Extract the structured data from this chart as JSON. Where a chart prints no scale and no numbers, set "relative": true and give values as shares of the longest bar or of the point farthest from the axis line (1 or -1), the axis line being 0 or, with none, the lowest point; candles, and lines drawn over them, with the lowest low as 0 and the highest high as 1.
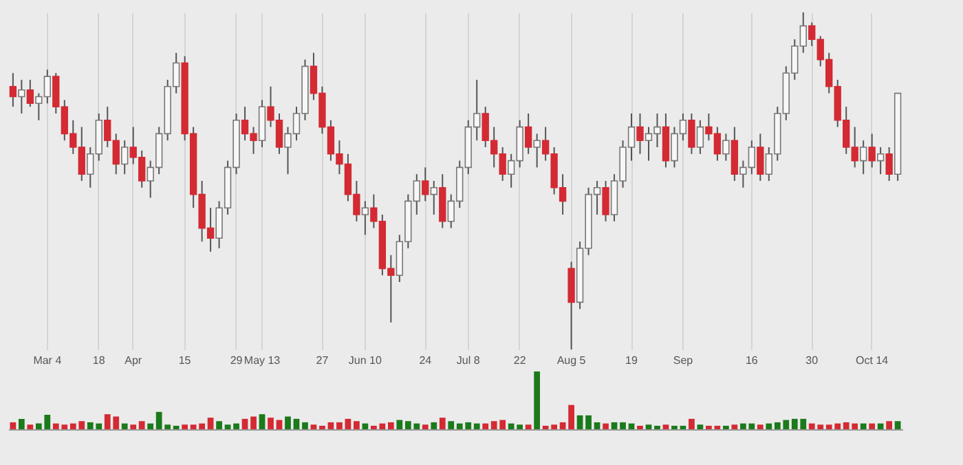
{
  "chart_data": [
    {
      "type": "candlestick",
      "relative": true,
      "grid": "x",
      "categories": [
        null,
        null,
        null,
        null,
        "Mar 4",
        null,
        null,
        null,
        null,
        null,
        "18",
        null,
        null,
        null,
        "Apr",
        null,
        null,
        null,
        null,
        null,
        "15",
        null,
        null,
        null,
        null,
        null,
        "29",
        null,
        null,
        "May 13",
        null,
        null,
        null,
        null,
        null,
        null,
        "27",
        null,
        null,
        null,
        null,
        "Jun 10",
        null,
        null,
        null,
        null,
        null,
        null,
        "24",
        null,
        null,
        null,
        null,
        "Jul 8",
        null,
        null,
        null,
        null,
        null,
        "22",
        null,
        null,
        null,
        null,
        null,
        "Aug 5",
        null,
        null,
        null,
        null,
        null,
        null,
        "19",
        null,
        null,
        null,
        null,
        null,
        "Sep",
        null,
        null,
        null,
        null,
        null,
        null,
        null,
        "16",
        null,
        null,
        null,
        null,
        null,
        null,
        "30",
        null,
        null,
        null,
        null,
        null,
        null,
        "Oct 14",
        null,
        null,
        null
      ],
      "ohlc": [
        [
          0.78,
          0.82,
          0.72,
          0.75
        ],
        [
          0.75,
          0.8,
          0.7,
          0.77
        ],
        [
          0.77,
          0.8,
          0.72,
          0.73
        ],
        [
          0.73,
          0.76,
          0.68,
          0.75
        ],
        [
          0.75,
          0.83,
          0.73,
          0.81
        ],
        [
          0.81,
          0.82,
          0.7,
          0.72
        ],
        [
          0.72,
          0.74,
          0.62,
          0.64
        ],
        [
          0.64,
          0.68,
          0.58,
          0.6
        ],
        [
          0.6,
          0.66,
          0.5,
          0.52
        ],
        [
          0.52,
          0.6,
          0.48,
          0.58
        ],
        [
          0.58,
          0.7,
          0.56,
          0.68
        ],
        [
          0.68,
          0.72,
          0.6,
          0.62
        ],
        [
          0.62,
          0.64,
          0.52,
          0.55
        ],
        [
          0.55,
          0.62,
          0.52,
          0.6
        ],
        [
          0.6,
          0.66,
          0.55,
          0.57
        ],
        [
          0.57,
          0.59,
          0.48,
          0.5
        ],
        [
          0.5,
          0.56,
          0.45,
          0.54
        ],
        [
          0.54,
          0.66,
          0.52,
          0.64
        ],
        [
          0.64,
          0.8,
          0.62,
          0.78
        ],
        [
          0.78,
          0.88,
          0.76,
          0.85
        ],
        [
          0.85,
          0.87,
          0.62,
          0.64
        ],
        [
          0.64,
          0.66,
          0.42,
          0.46
        ],
        [
          0.46,
          0.5,
          0.32,
          0.36
        ],
        [
          0.36,
          0.42,
          0.29,
          0.33
        ],
        [
          0.33,
          0.44,
          0.3,
          0.42
        ],
        [
          0.42,
          0.56,
          0.4,
          0.54
        ],
        [
          0.54,
          0.7,
          0.52,
          0.68
        ],
        [
          0.68,
          0.72,
          0.62,
          0.64
        ],
        [
          0.64,
          0.66,
          0.58,
          0.62
        ],
        [
          0.62,
          0.74,
          0.6,
          0.72
        ],
        [
          0.72,
          0.78,
          0.66,
          0.68
        ],
        [
          0.68,
          0.7,
          0.58,
          0.6
        ],
        [
          0.6,
          0.66,
          0.52,
          0.64
        ],
        [
          0.64,
          0.72,
          0.62,
          0.7
        ],
        [
          0.7,
          0.86,
          0.68,
          0.84
        ],
        [
          0.84,
          0.88,
          0.74,
          0.76
        ],
        [
          0.76,
          0.78,
          0.64,
          0.66
        ],
        [
          0.66,
          0.68,
          0.56,
          0.58
        ],
        [
          0.58,
          0.62,
          0.52,
          0.55
        ],
        [
          0.55,
          0.58,
          0.44,
          0.46
        ],
        [
          0.46,
          0.5,
          0.38,
          0.4
        ],
        [
          0.4,
          0.44,
          0.34,
          0.42
        ],
        [
          0.42,
          0.46,
          0.36,
          0.38
        ],
        [
          0.38,
          0.4,
          0.22,
          0.24
        ],
        [
          0.24,
          0.28,
          0.08,
          0.22
        ],
        [
          0.22,
          0.34,
          0.2,
          0.32
        ],
        [
          0.32,
          0.46,
          0.3,
          0.44
        ],
        [
          0.44,
          0.52,
          0.4,
          0.5
        ],
        [
          0.5,
          0.54,
          0.44,
          0.46
        ],
        [
          0.46,
          0.5,
          0.4,
          0.48
        ],
        [
          0.48,
          0.52,
          0.36,
          0.38
        ],
        [
          0.38,
          0.46,
          0.36,
          0.44
        ],
        [
          0.44,
          0.56,
          0.42,
          0.54
        ],
        [
          0.54,
          0.68,
          0.52,
          0.66
        ],
        [
          0.66,
          0.8,
          0.62,
          0.7
        ],
        [
          0.7,
          0.72,
          0.6,
          0.62
        ],
        [
          0.62,
          0.66,
          0.54,
          0.58
        ],
        [
          0.58,
          0.6,
          0.5,
          0.52
        ],
        [
          0.52,
          0.58,
          0.48,
          0.56
        ],
        [
          0.56,
          0.68,
          0.54,
          0.66
        ],
        [
          0.66,
          0.7,
          0.58,
          0.6
        ],
        [
          0.6,
          0.64,
          0.54,
          0.62
        ],
        [
          0.62,
          0.66,
          0.56,
          0.58
        ],
        [
          0.58,
          0.6,
          0.46,
          0.48
        ],
        [
          0.48,
          0.52,
          0.4,
          0.44
        ],
        [
          0.24,
          0.26,
          0.0,
          0.14
        ],
        [
          0.14,
          0.32,
          0.12,
          0.3
        ],
        [
          0.3,
          0.48,
          0.28,
          0.46
        ],
        [
          0.46,
          0.5,
          0.4,
          0.48
        ],
        [
          0.48,
          0.5,
          0.38,
          0.4
        ],
        [
          0.4,
          0.52,
          0.38,
          0.5
        ],
        [
          0.5,
          0.62,
          0.48,
          0.6
        ],
        [
          0.6,
          0.7,
          0.56,
          0.66
        ],
        [
          0.66,
          0.7,
          0.58,
          0.62
        ],
        [
          0.62,
          0.66,
          0.56,
          0.64
        ],
        [
          0.64,
          0.7,
          0.6,
          0.66
        ],
        [
          0.66,
          0.7,
          0.54,
          0.56
        ],
        [
          0.56,
          0.66,
          0.54,
          0.64
        ],
        [
          0.64,
          0.7,
          0.62,
          0.68
        ],
        [
          0.68,
          0.7,
          0.58,
          0.6
        ],
        [
          0.6,
          0.68,
          0.58,
          0.66
        ],
        [
          0.66,
          0.7,
          0.62,
          0.64
        ],
        [
          0.64,
          0.66,
          0.56,
          0.58
        ],
        [
          0.58,
          0.64,
          0.56,
          0.62
        ],
        [
          0.62,
          0.66,
          0.5,
          0.52
        ],
        [
          0.52,
          0.56,
          0.48,
          0.54
        ],
        [
          0.54,
          0.62,
          0.52,
          0.6
        ],
        [
          0.6,
          0.64,
          0.5,
          0.52
        ],
        [
          0.52,
          0.6,
          0.5,
          0.58
        ],
        [
          0.58,
          0.72,
          0.56,
          0.7
        ],
        [
          0.7,
          0.84,
          0.68,
          0.82
        ],
        [
          0.82,
          0.92,
          0.8,
          0.9
        ],
        [
          0.9,
          1.0,
          0.88,
          0.96
        ],
        [
          0.96,
          0.97,
          0.9,
          0.92
        ],
        [
          0.92,
          0.93,
          0.84,
          0.86
        ],
        [
          0.86,
          0.88,
          0.76,
          0.78
        ],
        [
          0.78,
          0.8,
          0.66,
          0.68
        ],
        [
          0.68,
          0.72,
          0.58,
          0.6
        ],
        [
          0.6,
          0.66,
          0.54,
          0.56
        ],
        [
          0.56,
          0.62,
          0.52,
          0.6
        ],
        [
          0.6,
          0.64,
          0.54,
          0.56
        ],
        [
          0.56,
          0.6,
          0.52,
          0.58
        ],
        [
          0.58,
          0.6,
          0.5,
          0.52
        ],
        [
          0.52,
          0.76,
          0.5,
          0.76
        ]
      ]
    },
    {
      "type": "bar",
      "relative": true,
      "categories": [
        null,
        null,
        null,
        null,
        null,
        null,
        null,
        null,
        null,
        null,
        null,
        null,
        null,
        null,
        null,
        null,
        null,
        null,
        null,
        null,
        null,
        null,
        null,
        null,
        null,
        null,
        null,
        null,
        null,
        null,
        null,
        null,
        null,
        null,
        null,
        null,
        null,
        null,
        null,
        null,
        null,
        null,
        null,
        null,
        null,
        null,
        null,
        null,
        null,
        null,
        null,
        null,
        null,
        null,
        null,
        null,
        null,
        null,
        null,
        null,
        null,
        null,
        null,
        null,
        null,
        null,
        null,
        null,
        null,
        null,
        null,
        null,
        null,
        null,
        null,
        null,
        null,
        null,
        null,
        null,
        null,
        null,
        null,
        null,
        null,
        null,
        null,
        null,
        null,
        null,
        null,
        null,
        null,
        null,
        null,
        null,
        null,
        null,
        null,
        null,
        null,
        null,
        null,
        null
      ],
      "values": [
        0.12,
        0.18,
        0.08,
        0.1,
        0.25,
        0.1,
        0.08,
        0.1,
        0.14,
        0.12,
        0.1,
        0.26,
        0.22,
        0.1,
        0.08,
        0.14,
        0.1,
        0.3,
        0.08,
        0.06,
        0.08,
        0.08,
        0.1,
        0.2,
        0.14,
        0.08,
        0.1,
        0.18,
        0.22,
        0.26,
        0.2,
        0.16,
        0.22,
        0.18,
        0.12,
        0.08,
        0.06,
        0.12,
        0.12,
        0.18,
        0.14,
        0.1,
        0.06,
        0.1,
        0.12,
        0.16,
        0.14,
        0.1,
        0.08,
        0.12,
        0.2,
        0.14,
        0.1,
        0.12,
        0.1,
        0.1,
        0.14,
        0.16,
        0.1,
        0.08,
        0.08,
        1.0,
        0.06,
        0.08,
        0.12,
        0.42,
        0.24,
        0.24,
        0.12,
        0.1,
        0.12,
        0.12,
        0.1,
        0.06,
        0.08,
        0.06,
        0.08,
        0.06,
        0.06,
        0.18,
        0.08,
        0.06,
        0.06,
        0.06,
        0.08,
        0.1,
        0.1,
        0.08,
        0.1,
        0.12,
        0.16,
        0.18,
        0.18,
        0.1,
        0.08,
        0.08,
        0.1,
        0.12,
        0.1,
        0.1,
        0.1,
        0.1,
        0.14,
        0.14
      ],
      "colors": [
        "#d42a33",
        "#1b7a1b",
        "#d42a33",
        "#1b7a1b",
        "#1b7a1b",
        "#d42a33",
        "#d42a33",
        "#d42a33",
        "#d42a33",
        "#1b7a1b",
        "#1b7a1b",
        "#d42a33",
        "#d42a33",
        "#1b7a1b",
        "#d42a33",
        "#d42a33",
        "#1b7a1b",
        "#1b7a1b",
        "#1b7a1b",
        "#1b7a1b",
        "#d42a33",
        "#d42a33",
        "#d42a33",
        "#d42a33",
        "#1b7a1b",
        "#1b7a1b",
        "#1b7a1b",
        "#d42a33",
        "#d42a33",
        "#1b7a1b",
        "#d42a33",
        "#d42a33",
        "#1b7a1b",
        "#1b7a1b",
        "#1b7a1b",
        "#d42a33",
        "#d42a33",
        "#d42a33",
        "#d42a33",
        "#d42a33",
        "#d42a33",
        "#1b7a1b",
        "#d42a33",
        "#d42a33",
        "#d42a33",
        "#1b7a1b",
        "#1b7a1b",
        "#1b7a1b",
        "#d42a33",
        "#1b7a1b",
        "#d42a33",
        "#1b7a1b",
        "#1b7a1b",
        "#1b7a1b",
        "#1b7a1b",
        "#d42a33",
        "#d42a33",
        "#d42a33",
        "#1b7a1b",
        "#1b7a1b",
        "#d42a33",
        "#1b7a1b",
        "#d42a33",
        "#d42a33",
        "#d42a33",
        "#d42a33",
        "#1b7a1b",
        "#1b7a1b",
        "#1b7a1b",
        "#d42a33",
        "#1b7a1b",
        "#1b7a1b",
        "#1b7a1b",
        "#d42a33",
        "#1b7a1b",
        "#1b7a1b",
        "#d42a33",
        "#1b7a1b",
        "#1b7a1b",
        "#d42a33",
        "#1b7a1b",
        "#d42a33",
        "#d42a33",
        "#1b7a1b",
        "#d42a33",
        "#1b7a1b",
        "#1b7a1b",
        "#d42a33",
        "#1b7a1b",
        "#1b7a1b",
        "#1b7a1b",
        "#1b7a1b",
        "#1b7a1b",
        "#d42a33",
        "#d42a33",
        "#d42a33",
        "#d42a33",
        "#d42a33",
        "#d42a33",
        "#1b7a1b",
        "#d42a33",
        "#1b7a1b",
        "#d42a33",
        "#1b7a1b"
      ]
    }
  ]
}
